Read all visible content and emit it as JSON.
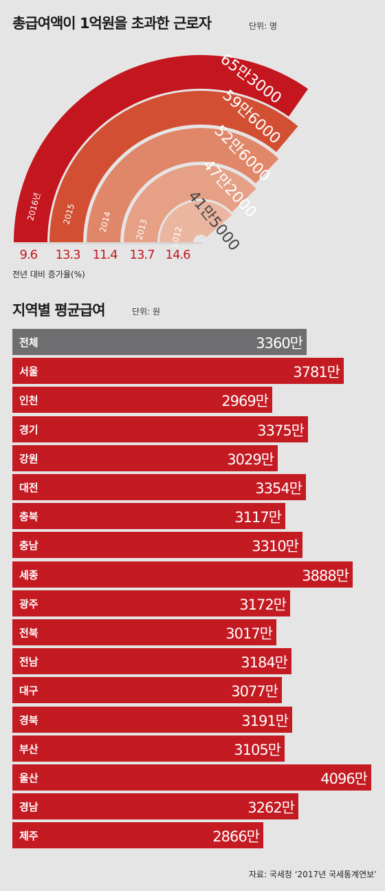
{
  "chart_data": [
    {
      "type": "radial-bar",
      "title": "총급여액이 1억원을 초과한 근로자",
      "unit": "단위: 명",
      "series": [
        {
          "year": "2016년",
          "value_label": "65만3000",
          "value": 653000,
          "growth": "9.6"
        },
        {
          "year": "2015",
          "value_label": "59만6000",
          "value": 596000,
          "growth": "13.3"
        },
        {
          "year": "2014",
          "value_label": "52만6000",
          "value": 526000,
          "growth": "11.4"
        },
        {
          "year": "2013",
          "value_label": "47만2000",
          "value": 472000,
          "growth": "13.7"
        },
        {
          "year": "2012",
          "value_label": "41만5000",
          "value": 415000,
          "growth": "14.6"
        }
      ],
      "growth_caption": "전년 대비 증가율(%)"
    },
    {
      "type": "bar",
      "title": "지역별 평균급여",
      "unit": "단위: 원",
      "categories": [
        "전체",
        "서울",
        "인천",
        "경기",
        "강원",
        "대전",
        "충북",
        "충남",
        "세종",
        "광주",
        "전북",
        "전남",
        "대구",
        "경북",
        "부산",
        "울산",
        "경남",
        "제주"
      ],
      "values": [
        3360,
        3781,
        2969,
        3375,
        3029,
        3354,
        3117,
        3310,
        3888,
        3172,
        3017,
        3184,
        3077,
        3191,
        3105,
        4096,
        3262,
        2866
      ],
      "value_labels": [
        "3360만",
        "3781만",
        "2969만",
        "3375만",
        "3029만",
        "3354만",
        "3117만",
        "3310만",
        "3888만",
        "3172만",
        "3017만",
        "3184만",
        "3077만",
        "3191만",
        "3105만",
        "4096만",
        "3262만",
        "2866만"
      ],
      "highlight": "전체"
    }
  ],
  "colors": {
    "arcs": [
      "#c4161e",
      "#d24f33",
      "#e0876a",
      "#e5a086",
      "#ebb6a0"
    ],
    "bar": "#c41a22",
    "total_bar": "#6e6e70",
    "background": "#e6e5e5"
  },
  "source": "자료: 국세청 ‘2017년 국세통계연보’"
}
